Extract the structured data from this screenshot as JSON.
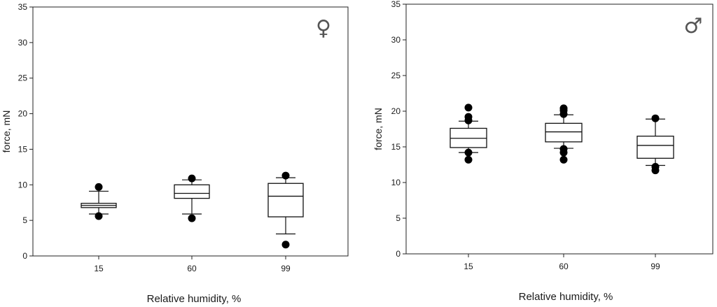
{
  "chart_data": [
    {
      "type": "box",
      "panel_symbol": "♀",
      "xlabel": "Relative humidity, %",
      "ylabel": "force, mN",
      "ylim": [
        0,
        35
      ],
      "yticks": [
        0,
        5,
        10,
        15,
        20,
        25,
        30,
        35
      ],
      "categories": [
        "15",
        "60",
        "99"
      ],
      "boxes": [
        {
          "whisker_low": 5.9,
          "q1": 6.8,
          "median": 7.1,
          "q3": 7.4,
          "whisker_high": 9.1,
          "outliers": [
            5.6,
            9.7
          ]
        },
        {
          "whisker_low": 5.9,
          "q1": 8.1,
          "median": 8.8,
          "q3": 10.0,
          "whisker_high": 10.7,
          "outliers": [
            5.3,
            10.9
          ]
        },
        {
          "whisker_low": 3.1,
          "q1": 5.5,
          "median": 8.4,
          "q3": 10.2,
          "whisker_high": 11.0,
          "outliers": [
            1.6,
            11.3
          ]
        }
      ],
      "grid": false
    },
    {
      "type": "box",
      "panel_symbol": "♂",
      "xlabel": "Relative humidity, %",
      "ylabel": "force, mN",
      "ylim": [
        0,
        35
      ],
      "yticks": [
        0,
        5,
        10,
        15,
        20,
        25,
        30,
        35
      ],
      "categories": [
        "15",
        "60",
        "99"
      ],
      "boxes": [
        {
          "whisker_low": 14.2,
          "q1": 14.9,
          "median": 16.2,
          "q3": 17.6,
          "whisker_high": 18.6,
          "outliers": [
            13.2,
            14.2,
            18.7,
            19.2,
            20.5
          ]
        },
        {
          "whisker_low": 14.8,
          "q1": 15.7,
          "median": 17.1,
          "q3": 18.3,
          "whisker_high": 19.5,
          "outliers": [
            13.2,
            14.2,
            14.7,
            19.6,
            20.1,
            20.4
          ]
        },
        {
          "whisker_low": 12.4,
          "q1": 13.4,
          "median": 15.2,
          "q3": 16.5,
          "whisker_high": 18.9,
          "outliers": [
            11.7,
            12.2,
            19.0
          ]
        }
      ],
      "grid": false
    }
  ]
}
